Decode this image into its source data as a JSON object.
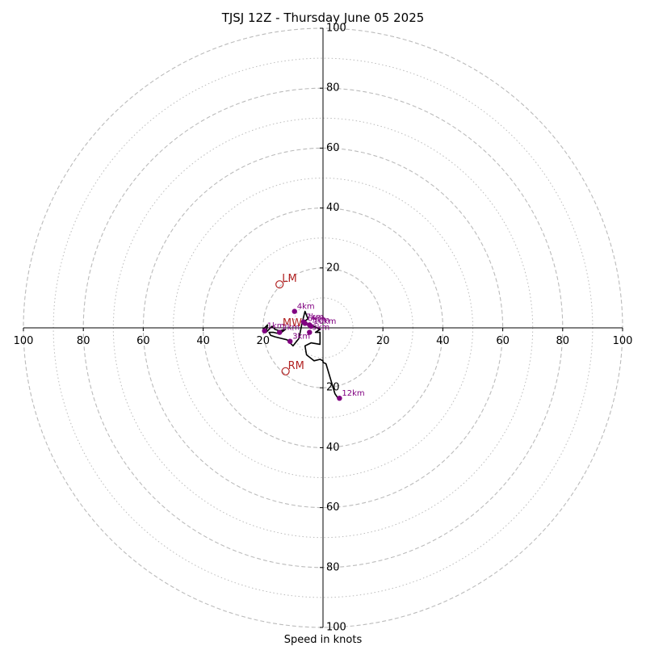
{
  "chart_data": {
    "type": "hodograph",
    "title": "TJSJ 12Z - Thursday June 05 2025",
    "xlabel": "Speed in knots",
    "units": "knots",
    "range": [
      -100,
      100
    ],
    "rings_major": [
      20,
      40,
      60,
      80,
      100
    ],
    "rings_minor": [
      10,
      30,
      50,
      70,
      90
    ],
    "tick_labels": {
      "x_left": [
        "100",
        "80",
        "60",
        "40",
        "20"
      ],
      "x_right": [
        "20",
        "40",
        "60",
        "80",
        "100"
      ],
      "y_top": [
        "100",
        "80",
        "60",
        "40",
        "20"
      ],
      "y_bottom": [
        "20",
        "40",
        "60",
        "80",
        "100"
      ]
    },
    "wind_profile": {
      "u": [
        -20,
        -18.5,
        -19,
        -17,
        -16,
        -14.5,
        -12.5,
        -14.5,
        -16.5,
        -18,
        -17.5,
        -16,
        -14,
        -12,
        -10,
        -8,
        -7,
        -6,
        -5,
        -6.5,
        -4.5,
        -3,
        -1,
        -2.5,
        -1,
        -1,
        -4,
        -6,
        -5.5,
        -3,
        -1,
        0,
        0,
        1,
        4,
        5
      ],
      "v": [
        -0.5,
        1,
        -1.5,
        0.5,
        -0.5,
        -1,
        -0.5,
        -2,
        -1.5,
        -1.5,
        -2.5,
        -3,
        -3.5,
        -4,
        -6,
        -3.5,
        1.5,
        5.5,
        3,
        2,
        0.5,
        0.5,
        -0.5,
        -1.5,
        -1.5,
        -5.5,
        -5,
        -6,
        -9,
        -11,
        -10.5,
        -11,
        -11.5,
        -12,
        -22,
        -23.5
      ]
    },
    "height_markers": [
      {
        "label": "1km",
        "u": -19.5,
        "v": -1.0
      },
      {
        "label": "2km",
        "u": -14.5,
        "v": -1.5
      },
      {
        "label": "3km",
        "u": -11.0,
        "v": -4.5
      },
      {
        "label": "4km",
        "u": -9.5,
        "v": 5.5
      },
      {
        "label": "5km",
        "u": -4.5,
        "v": 1.0
      },
      {
        "label": "6km",
        "u": -6.0,
        "v": 1.5
      },
      {
        "label": "7km",
        "u": -6.5,
        "v": 2.0
      },
      {
        "label": "9km",
        "u": -4.5,
        "v": -1.5
      },
      {
        "label": "10km",
        "u": -4.0,
        "v": 0.5
      },
      {
        "label": "12km",
        "u": 5.5,
        "v": -23.5
      }
    ],
    "storm_motions": [
      {
        "label": "LM",
        "u": -14.5,
        "v": 14.5
      },
      {
        "label": "RM",
        "u": -12.5,
        "v": -14.5
      },
      {
        "label": "MW",
        "u": -13.5,
        "v": 0.5
      }
    ],
    "colors": {
      "profile": "#000000",
      "markers": "#800080",
      "motion": "#b22222",
      "grid": "#bbbbbb"
    }
  }
}
